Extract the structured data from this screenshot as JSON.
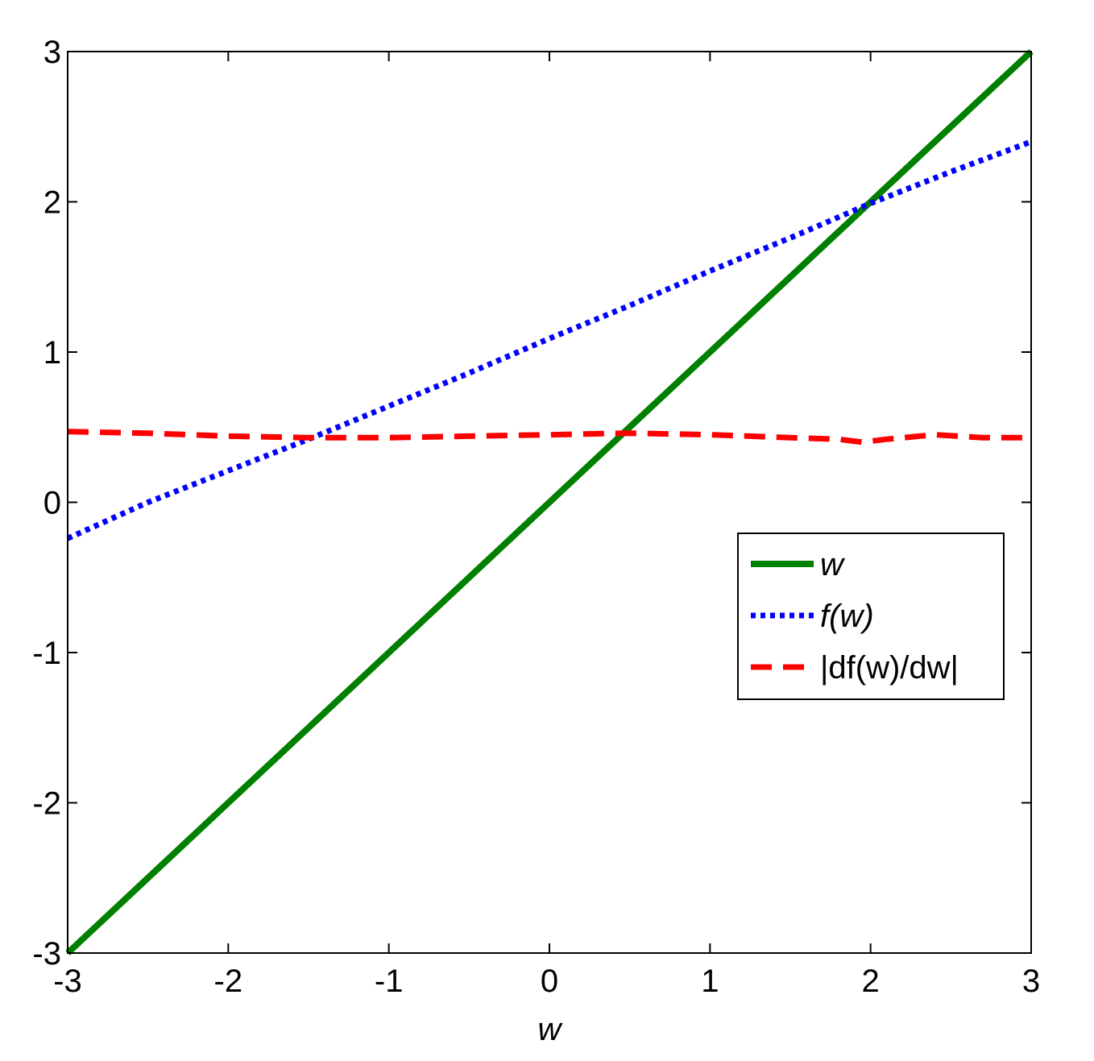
{
  "chart_data": {
    "type": "line",
    "xlabel": "w",
    "ylabel": "",
    "title": "",
    "xlim": [
      -3,
      3
    ],
    "ylim": [
      -3,
      3
    ],
    "xticks": [
      -3,
      -2,
      -1,
      0,
      1,
      2,
      3
    ],
    "yticks": [
      -3,
      -2,
      -1,
      0,
      1,
      2,
      3
    ],
    "xtick_labels": [
      "-3",
      "-2",
      "-1",
      "0",
      "1",
      "2",
      "3"
    ],
    "ytick_labels": [
      "-3",
      "-2",
      "-1",
      "0",
      "1",
      "2",
      "3"
    ],
    "grid": false,
    "legend_position": "center-right",
    "series": [
      {
        "key": "w",
        "name": "w",
        "color": "#008000",
        "style": "solid",
        "x": [
          -3,
          -2,
          -1,
          0,
          1,
          2,
          3
        ],
        "y": [
          -3,
          -2,
          -1,
          0,
          1,
          2,
          3
        ]
      },
      {
        "key": "f",
        "name": "f(w)",
        "color": "#0000ff",
        "style": "dotted",
        "x": [
          -3,
          -2.5,
          -2,
          -1.5,
          -1,
          -0.5,
          0,
          0.5,
          1,
          1.5,
          2,
          2.5,
          3
        ],
        "y": [
          -0.24,
          0.0,
          0.21,
          0.42,
          0.64,
          0.86,
          1.09,
          1.31,
          1.54,
          1.76,
          1.99,
          2.2,
          2.4
        ]
      },
      {
        "key": "df",
        "name": "|df(w)/dw|",
        "color": "#ff0000",
        "style": "dashed",
        "x": [
          -3,
          -2.5,
          -2,
          -1.5,
          -1,
          -0.5,
          0,
          0.5,
          1,
          1.5,
          1.8,
          1.95,
          2.1,
          2.4,
          2.7,
          3
        ],
        "y": [
          0.47,
          0.46,
          0.44,
          0.43,
          0.43,
          0.44,
          0.45,
          0.46,
          0.45,
          0.43,
          0.42,
          0.4,
          0.42,
          0.45,
          0.43,
          0.43
        ]
      }
    ]
  }
}
